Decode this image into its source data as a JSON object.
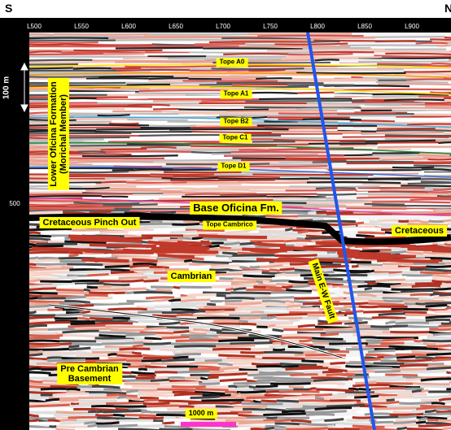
{
  "header": {
    "left": "S",
    "right": "N"
  },
  "axis": {
    "x_labels": [
      "L500",
      "L550",
      "L600",
      "L650",
      "L700",
      "L750",
      "L800",
      "L850",
      "L900"
    ],
    "y_label": "500"
  },
  "scale": {
    "vertical": "100 m",
    "horizontal": "1000 m"
  },
  "horizons": [
    "Tope A0",
    "Tope A1",
    "Tope B2",
    "Tope C1",
    "Tope D1",
    "Base Oficina Fm.",
    "Tope Cambrico"
  ],
  "units": {
    "formation": [
      "Lower Oficina Formation",
      "(Morichal Member)"
    ],
    "pinch_out": "Cretaceous Pinch Out",
    "cretaceous": "Cretaceous",
    "cambrian": "Cambrian",
    "fault": "Main E-W Fault",
    "basement": [
      "Pre Cambrian",
      "Basement"
    ]
  }
}
